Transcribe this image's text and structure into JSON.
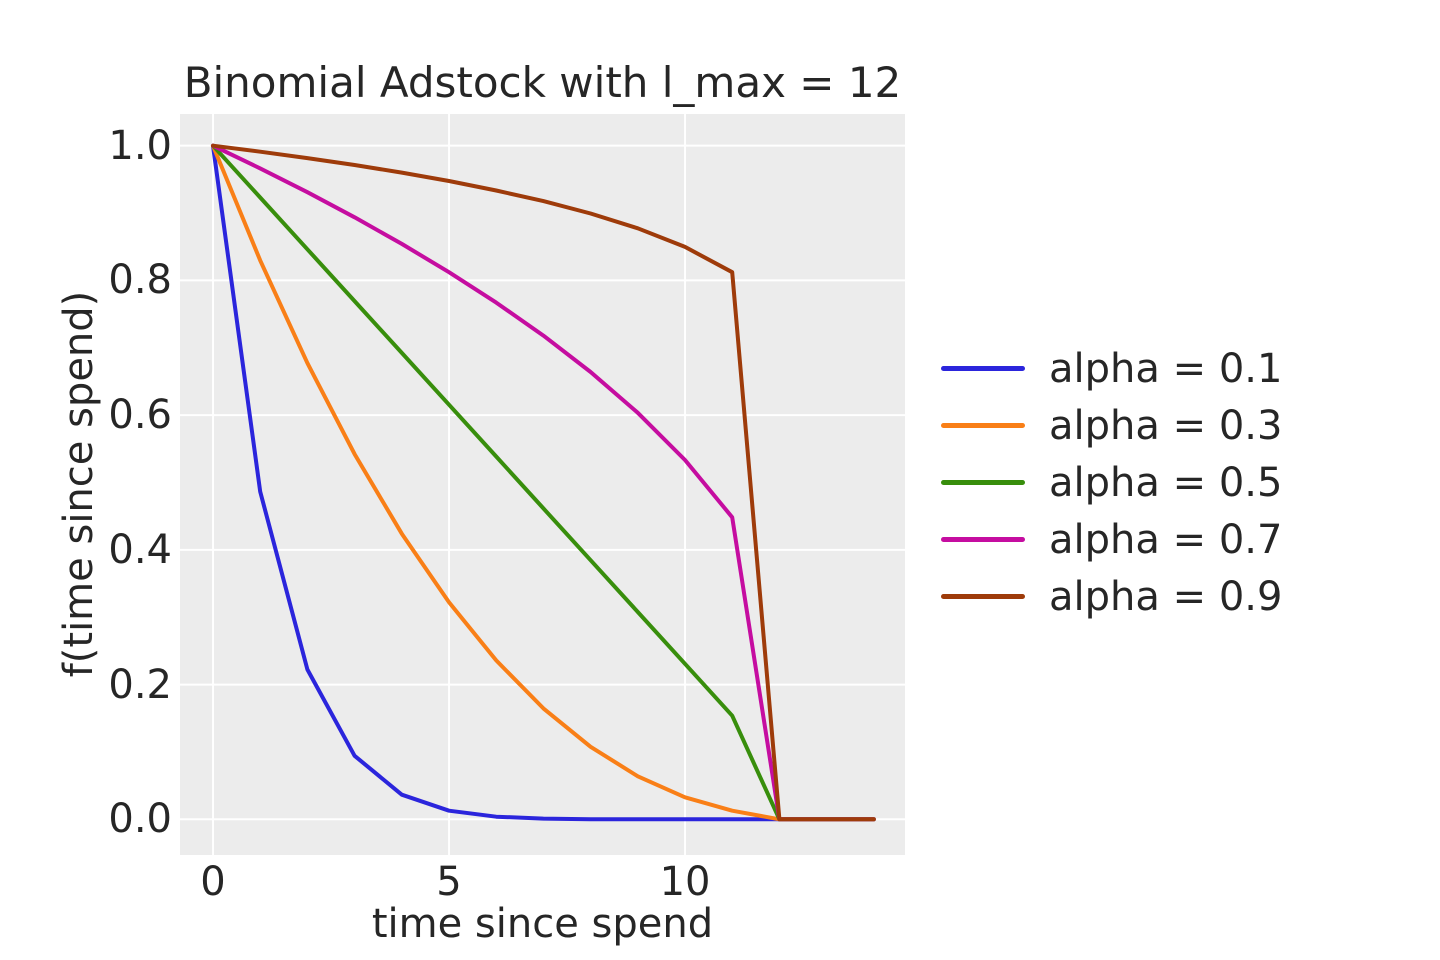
{
  "figure": {
    "background": "#ffffff",
    "axes_background": "#ececec",
    "grid_color": "#ffffff",
    "text_color": "#262626"
  },
  "chart_data": {
    "type": "line",
    "title": "Binomial Adstock with l_max = 12",
    "xlabel": "time since spend",
    "ylabel": "f(time since spend)",
    "grid": true,
    "legend_position": "right-outside",
    "xlim": [
      -0.7,
      14.66
    ],
    "ylim": [
      -0.053,
      1.047
    ],
    "xticks": [
      0,
      5,
      10
    ],
    "xticklabels": [
      "0",
      "5",
      "10"
    ],
    "yticks": [
      0.0,
      0.2,
      0.4,
      0.6,
      0.8,
      1.0
    ],
    "yticklabels": [
      "0.0",
      "0.2",
      "0.4",
      "0.6",
      "0.8",
      "1.0"
    ],
    "x": [
      0,
      1,
      2,
      3,
      4,
      5,
      6,
      7,
      8,
      9,
      10,
      11,
      12,
      13,
      14
    ],
    "series": [
      {
        "name": "alpha = 0.1",
        "color": "#2b25dc",
        "values": [
          1.0,
          0.4865,
          0.2224,
          0.0942,
          0.0365,
          0.0127,
          0.0038,
          0.001,
          0.0002,
          0.0,
          0.0,
          0.0,
          0.0,
          0.0,
          0.0
        ]
      },
      {
        "name": "alpha = 0.3",
        "color": "#f97f17",
        "values": [
          1.0,
          0.8296,
          0.6772,
          0.5422,
          0.424,
          0.3221,
          0.2359,
          0.1646,
          0.1076,
          0.0639,
          0.0327,
          0.0127,
          0.0,
          0.0,
          0.0
        ]
      },
      {
        "name": "alpha = 0.5",
        "color": "#388e0c",
        "values": [
          1.0,
          0.9231,
          0.8462,
          0.7692,
          0.6923,
          0.6154,
          0.5385,
          0.4615,
          0.3846,
          0.3077,
          0.2308,
          0.1538,
          0.0,
          0.0,
          0.0
        ]
      },
      {
        "name": "alpha = 0.7",
        "color": "#c50da0",
        "values": [
          1.0,
          0.9663,
          0.9309,
          0.8937,
          0.8542,
          0.8121,
          0.767,
          0.718,
          0.664,
          0.6034,
          0.5334,
          0.4483,
          0.0,
          0.0,
          0.0
        ]
      },
      {
        "name": "alpha = 0.9",
        "color": "#9e3b0a",
        "values": [
          1.0,
          0.9911,
          0.9816,
          0.9713,
          0.96,
          0.9475,
          0.9335,
          0.9177,
          0.8993,
          0.8773,
          0.8497,
          0.8122,
          0.0,
          0.0,
          0.0
        ]
      }
    ]
  }
}
